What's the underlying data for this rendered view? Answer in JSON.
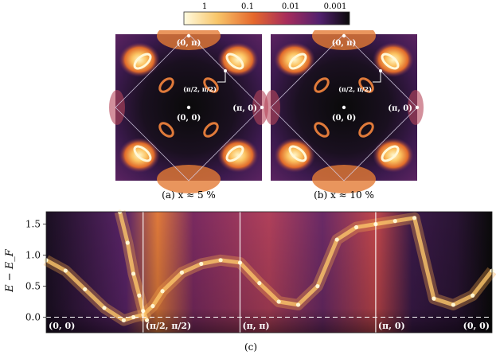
{
  "colorbar": {
    "ticks": [
      "1",
      "0.1",
      "0.01",
      "0.001"
    ],
    "colors": [
      "#fffbe0",
      "#f8c66a",
      "#e5682c",
      "#a72c5b",
      "#51206e",
      "#0a0a0a"
    ]
  },
  "panels": [
    {
      "caption": "(a) x ≈ 5 %",
      "labels": {
        "top": "(0, π)",
        "node": "(π/2, π/2)",
        "center": "(0, 0)",
        "right": "(π, 0)"
      }
    },
    {
      "caption": "(b) x ≈ 10 %",
      "labels": {
        "top": "(0, π)",
        "node": "(π/2, π/2)",
        "center": "(0, 0)",
        "right": "(π, 0)"
      }
    }
  ],
  "bottom_caption": "(c)",
  "chart_data": {
    "type": "line",
    "ylabel": "E − E_F",
    "ylim": [
      -0.25,
      1.7
    ],
    "yticks": [
      "1.5",
      "1.0",
      "0.5",
      "0.0"
    ],
    "ytick_values": [
      1.5,
      1.0,
      0.5,
      0.0
    ],
    "xticks": [
      "(0, 0)",
      "(π/2, π/2)",
      "(π, π)",
      "(π, 0)",
      "(0, 0)"
    ],
    "xtick_positions": [
      0,
      0.5,
      1.0,
      1.7,
      2.3
    ],
    "fermi_level": 0.0,
    "series": [
      {
        "x": [
          0,
          0.1,
          0.2,
          0.3,
          0.4,
          0.45,
          0.5,
          0.55,
          0.6,
          0.7,
          0.8,
          0.9,
          1.0,
          1.1,
          1.2,
          1.3,
          1.4,
          1.5,
          1.6,
          1.7,
          1.8,
          1.9,
          2.0,
          2.1,
          2.2,
          2.3
        ],
        "y": [
          0.92,
          0.75,
          0.45,
          0.15,
          -0.05,
          0.0,
          0.04,
          0.18,
          0.42,
          0.72,
          0.86,
          0.92,
          0.88,
          0.55,
          0.25,
          0.2,
          0.5,
          1.25,
          1.45,
          1.5,
          1.55,
          1.6,
          0.3,
          0.2,
          0.35,
          0.75
        ]
      },
      {
        "x": [
          0.38,
          0.42,
          0.45,
          0.48,
          0.5,
          0.52
        ],
        "y": [
          1.7,
          1.2,
          0.7,
          0.35,
          0.1,
          -0.05
        ]
      }
    ]
  }
}
